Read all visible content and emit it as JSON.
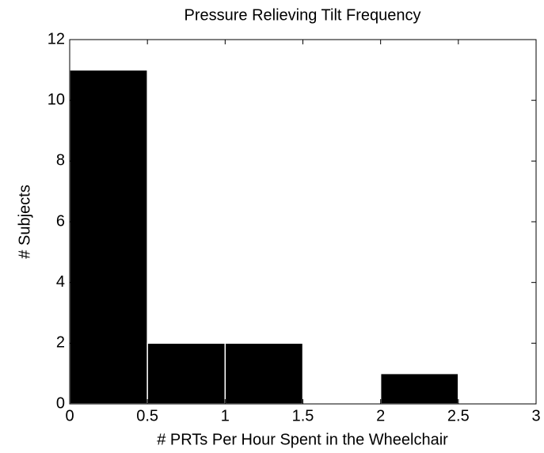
{
  "chart_data": {
    "type": "histogram",
    "title": "Pressure Relieving Tilt Frequency",
    "xlabel": "# PRTs Per Hour Spent in the Wheelchair",
    "ylabel": "# Subjects",
    "bins": [
      0,
      0.5,
      1,
      1.5,
      2,
      2.5,
      3
    ],
    "values": [
      11,
      2,
      2,
      0,
      1,
      0
    ],
    "color": "#000000",
    "xlim": [
      0,
      3
    ],
    "xticks": [
      0,
      0.5,
      1,
      1.5,
      2,
      2.5,
      3
    ],
    "ylim": [
      0,
      12
    ],
    "yticks": [
      0,
      2,
      4,
      6,
      8,
      10,
      12
    ]
  }
}
